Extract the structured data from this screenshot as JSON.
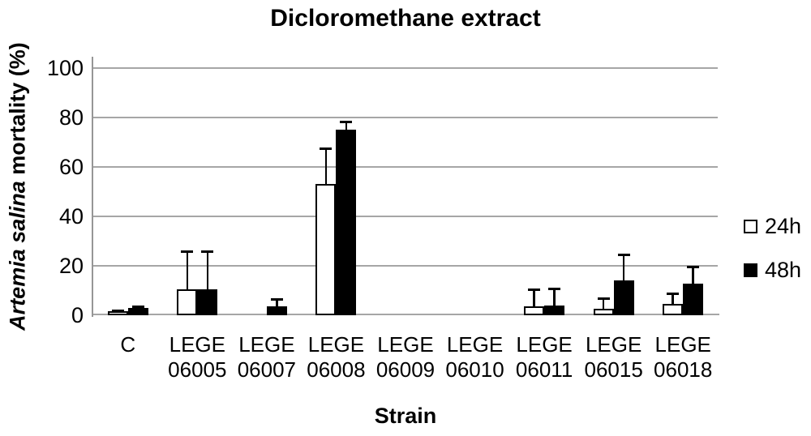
{
  "figure": {
    "title": "Dicloromethane extract",
    "xlabel": "Strain",
    "ylabel_italic": "Artemia salina",
    "ylabel_rest": " mortality (%)"
  },
  "chart_data": {
    "type": "bar",
    "title": "Dicloromethane extract",
    "xlabel": "Strain",
    "ylabel": "Artemia salina mortality (%)",
    "ylim": [
      0,
      100
    ],
    "yticks": [
      0,
      20,
      40,
      60,
      80,
      100
    ],
    "grid": true,
    "legend_position": "right",
    "categories": [
      "C",
      "LEGE 06005",
      "LEGE 06007",
      "LEGE 06008",
      "LEGE 06009",
      "LEGE 06010",
      "LEGE 06011",
      "LEGE 06015",
      "LEGE 06018"
    ],
    "category_label_lines": [
      [
        "C"
      ],
      [
        "LEGE",
        "06005"
      ],
      [
        "LEGE",
        "06007"
      ],
      [
        "LEGE",
        "06008"
      ],
      [
        "LEGE",
        "06009"
      ],
      [
        "LEGE",
        "06010"
      ],
      [
        "LEGE",
        "06011"
      ],
      [
        "LEGE",
        "06015"
      ],
      [
        "LEGE",
        "06018"
      ]
    ],
    "series": [
      {
        "name": "24h",
        "fill": "#ffffff",
        "values": [
          1.5,
          10.5,
          0,
          53,
          0,
          0,
          3.6,
          2.5,
          4.5
        ],
        "errors": [
          0.5,
          15.5,
          0,
          14.5,
          0,
          0,
          7,
          4.5,
          4.4
        ]
      },
      {
        "name": "48h",
        "fill": "#000000",
        "values": [
          2.8,
          10.5,
          3.5,
          75,
          0,
          0,
          3.9,
          14,
          12.8
        ],
        "errors": [
          0.8,
          15.5,
          3.2,
          3.5,
          0,
          0,
          7,
          10.5,
          6.8
        ]
      }
    ],
    "colors": {
      "gridline": "#a6a6a6",
      "axis": "#969696",
      "bar_border": "#000000",
      "text": "#000000"
    }
  }
}
